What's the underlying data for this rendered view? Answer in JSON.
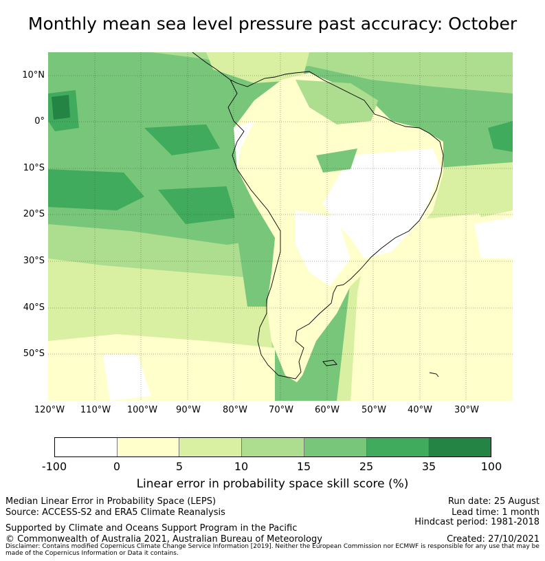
{
  "title": "Monthly mean sea level pressure past accuracy: October",
  "map": {
    "lat_labels": [
      "10°N",
      "0°",
      "10°S",
      "20°S",
      "30°S",
      "40°S",
      "50°S"
    ],
    "lon_labels": [
      "120°W",
      "110°W",
      "100°W",
      "90°W",
      "80°W",
      "70°W",
      "60°W",
      "50°W",
      "40°W",
      "30°W"
    ],
    "extent": {
      "lon": [
        -120,
        -20
      ],
      "lat": [
        -60,
        15
      ]
    }
  },
  "colorbar": {
    "ticks": [
      "-100",
      "0",
      "5",
      "10",
      "15",
      "25",
      "35",
      "100"
    ],
    "colors": [
      "#ffffff",
      "#ffffcc",
      "#d9f0a3",
      "#addd8e",
      "#78c679",
      "#41ab5d",
      "#238443"
    ],
    "label": "Linear error in probability space skill score (%)"
  },
  "footer": {
    "left_line1": "Median Linear Error in Probability Space (LEPS)",
    "left_line2": "Source: ACCESS-S2 and ERA5 Climate Reanalysis",
    "left_line3": "Supported by Climate and Oceans Support Program in the Pacific",
    "left_line4": "© Commonwealth of Australia 2021, Australian Bureau of Meteorology",
    "right_line1": "Run date: 25 August",
    "right_line2": "Lead time: 1 month",
    "right_line3": "Hindcast period: 1981-2018",
    "right_line4": "Created: 27/10/2021",
    "disclaimer": "Disclaimer: Contains modified Copernicus Climate Change Service Information [2019]. Neither the European Commission nor ECMWF is responsible for any use that may be made of the Copernicus Information or Data it contains."
  }
}
